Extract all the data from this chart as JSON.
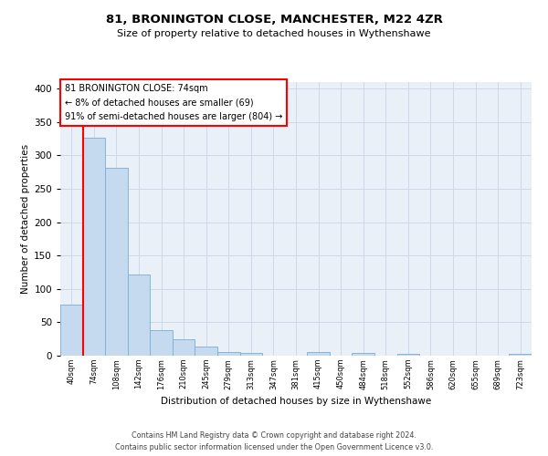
{
  "title1": "81, BRONINGTON CLOSE, MANCHESTER, M22 4ZR",
  "title2": "Size of property relative to detached houses in Wythenshawe",
  "xlabel": "Distribution of detached houses by size in Wythenshawe",
  "ylabel": "Number of detached properties",
  "bin_labels": [
    "40sqm",
    "74sqm",
    "108sqm",
    "142sqm",
    "176sqm",
    "210sqm",
    "245sqm",
    "279sqm",
    "313sqm",
    "347sqm",
    "381sqm",
    "415sqm",
    "450sqm",
    "484sqm",
    "518sqm",
    "552sqm",
    "586sqm",
    "620sqm",
    "655sqm",
    "689sqm",
    "723sqm"
  ],
  "bar_heights": [
    76,
    327,
    281,
    122,
    38,
    24,
    13,
    5,
    4,
    0,
    0,
    5,
    0,
    4,
    0,
    3,
    0,
    0,
    0,
    0,
    3
  ],
  "bar_color": "#c5d9ef",
  "bar_edge_color": "#7aadd4",
  "ylim": [
    0,
    410
  ],
  "yticks": [
    0,
    50,
    100,
    150,
    200,
    250,
    300,
    350,
    400
  ],
  "annotation_line1": "81 BRONINGTON CLOSE: 74sqm",
  "annotation_line2": "← 8% of detached houses are smaller (69)",
  "annotation_line3": "91% of semi-detached houses are larger (804) →",
  "footer_line1": "Contains HM Land Registry data © Crown copyright and database right 2024.",
  "footer_line2": "Contains public sector information licensed under the Open Government Licence v3.0.",
  "grid_color": "#ccd9e8",
  "background_color": "#eaf0f8"
}
